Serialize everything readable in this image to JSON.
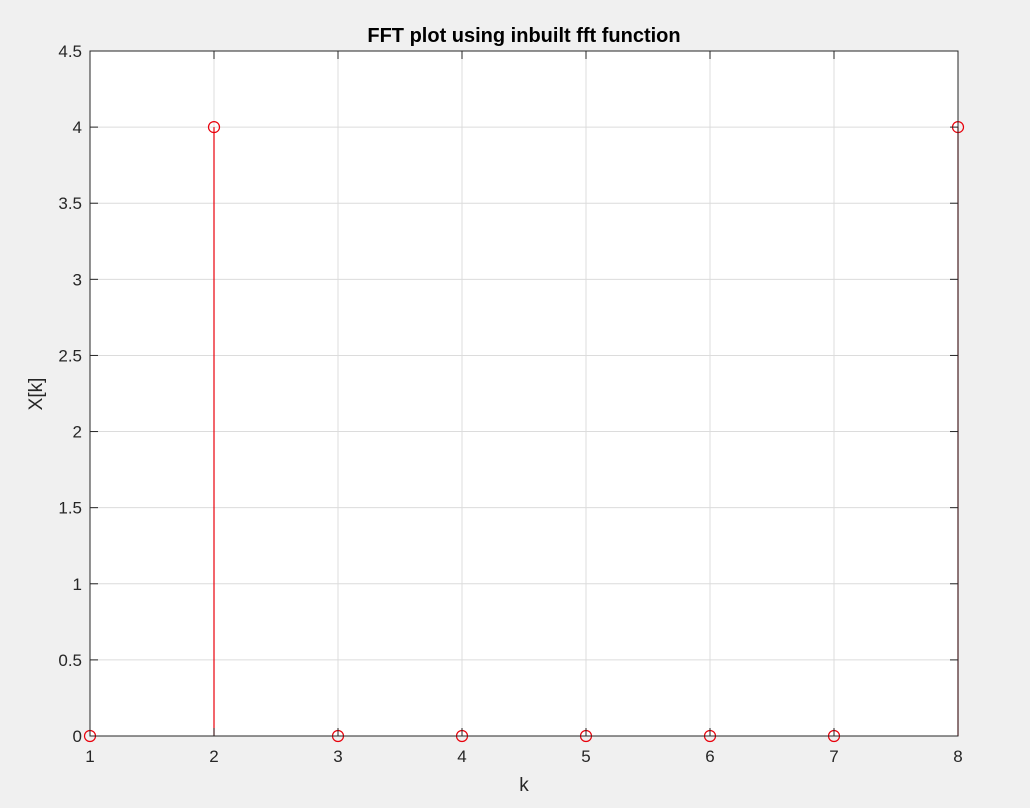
{
  "chart_data": {
    "type": "stem",
    "title": "FFT plot using inbuilt fft function",
    "xlabel": "k",
    "ylabel": "X[k]",
    "xlim": [
      1,
      8
    ],
    "ylim": [
      0,
      4.5
    ],
    "xticks": [
      "1",
      "2",
      "3",
      "4",
      "5",
      "6",
      "7",
      "8"
    ],
    "yticks": [
      "0",
      "0.5",
      "1",
      "1.5",
      "2",
      "2.5",
      "3",
      "3.5",
      "4",
      "4.5"
    ],
    "grid": true,
    "x": [
      1,
      2,
      3,
      4,
      5,
      6,
      7,
      8
    ],
    "y": [
      0,
      4,
      0,
      0,
      0,
      0,
      0,
      4
    ],
    "series_color": "#e8000b"
  }
}
